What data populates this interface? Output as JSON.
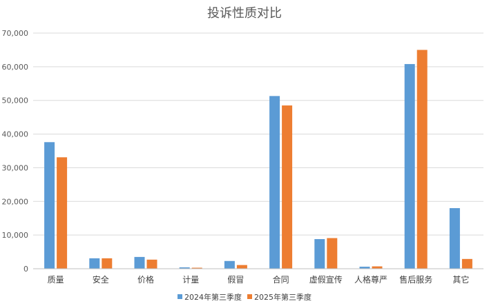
{
  "chart_data": {
    "type": "bar",
    "title": "投诉性质对比",
    "categories": [
      "质量",
      "安全",
      "价格",
      "计量",
      "假冒",
      "合同",
      "虚假宣传",
      "人格尊严",
      "售后服务",
      "其它"
    ],
    "series": [
      {
        "name": "2024年第三季度",
        "color": "#5b9bd5",
        "values": [
          37600,
          3100,
          3500,
          400,
          2300,
          51300,
          8800,
          600,
          60800,
          18000
        ]
      },
      {
        "name": "2025年第三季度",
        "color": "#ed7d31",
        "values": [
          33100,
          3100,
          2700,
          300,
          1100,
          48500,
          9100,
          700,
          65000,
          2900
        ]
      }
    ],
    "ylim": [
      0,
      70000
    ],
    "yticks": [
      0,
      10000,
      20000,
      30000,
      40000,
      50000,
      60000,
      70000
    ],
    "ytick_labels": [
      "0",
      "10,000",
      "20,000",
      "30,000",
      "40,000",
      "50,000",
      "60,000",
      "70,000"
    ],
    "grid": true,
    "legend_position": "bottom"
  }
}
